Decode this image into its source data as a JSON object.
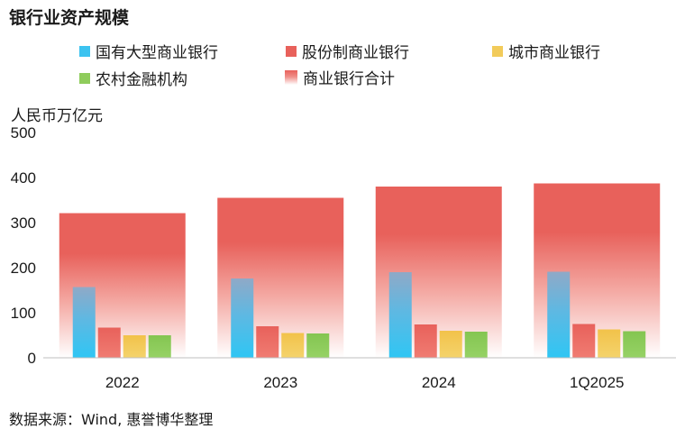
{
  "title": "银行业资产规模",
  "unit_label": "人民币万亿元",
  "source": "数据来源：Wind, 惠誉博华整理",
  "chart_data": {
    "type": "bar",
    "title": "银行业资产规模",
    "ylabel": "人民币万亿元",
    "xlabel": "",
    "ylim": [
      0,
      500
    ],
    "yticks": [
      0,
      100,
      200,
      300,
      400,
      500
    ],
    "categories": [
      "2022",
      "2023",
      "2024",
      "1Q2025"
    ],
    "series": [
      {
        "name": "国有大型商业银行",
        "values": [
          157,
          176,
          190,
          191
        ],
        "color": "#3cc3f0"
      },
      {
        "name": "股份制商业银行",
        "values": [
          67,
          70,
          74,
          75
        ],
        "color": "#e8615b"
      },
      {
        "name": "城市商业银行",
        "values": [
          50,
          55,
          60,
          63
        ],
        "color": "#f2cb5a"
      },
      {
        "name": "农村金融机构",
        "values": [
          50,
          54,
          58,
          59
        ],
        "color": "#8fcc5c"
      },
      {
        "name": "商业银行合计",
        "values": [
          321,
          355,
          380,
          387
        ],
        "color": "#e8615b",
        "style": "background-total"
      }
    ],
    "grid": false,
    "legend_position": "top"
  }
}
